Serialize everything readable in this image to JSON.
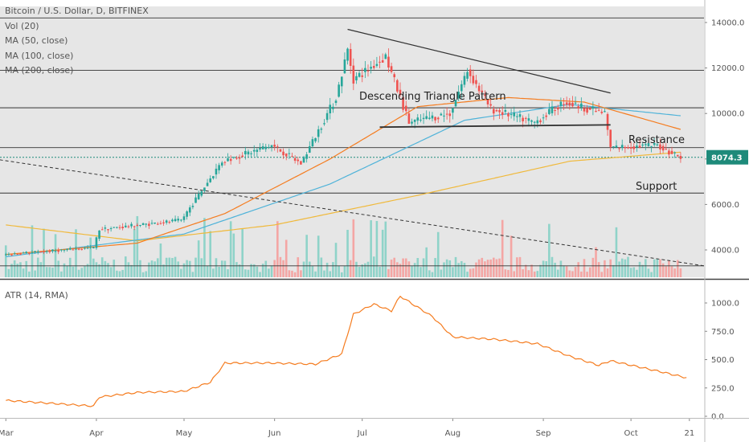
{
  "chart_data": [
    {
      "type": "candlestick",
      "title": "Bitcoin / U.S. Dollar, D, BITFINEX",
      "legend": [
        "Vol (20)",
        "MA (50, close)",
        "MA (100, close)",
        "MA (200, close)"
      ],
      "y_ticks": [
        "14000.0",
        "12000.0",
        "10000.0",
        "8000.0",
        "6000.0",
        "4000.0"
      ],
      "ylim": [
        3000,
        14500
      ],
      "last_price": "8074.3",
      "annotations": {
        "pattern": "Descending Triangle Pattern",
        "resistance": "Resistance",
        "support": "Support"
      },
      "horizontal_levels": [
        14200,
        11900,
        10250,
        8500,
        6500,
        3300
      ],
      "pattern_lines": {
        "upper": [
          [
            "2019-06-26",
            13700
          ],
          [
            "2019-09-24",
            10900
          ]
        ],
        "lower": [
          [
            "2019-07-07",
            9400
          ],
          [
            "2019-09-24",
            9500
          ]
        ],
        "long_trend": [
          [
            "2019-02-25",
            8000
          ],
          [
            "2019-10-26",
            3300
          ]
        ]
      },
      "price_path": [
        [
          "2019-03-01",
          3800
        ],
        [
          "2019-03-31",
          4100
        ],
        [
          "2019-04-02",
          4900
        ],
        [
          "2019-04-30",
          5300
        ],
        [
          "2019-05-14",
          7900
        ],
        [
          "2019-05-31",
          8600
        ],
        [
          "2019-06-10",
          7800
        ],
        [
          "2019-06-22",
          10700
        ],
        [
          "2019-06-26",
          12800
        ],
        [
          "2019-06-28",
          11500
        ],
        [
          "2019-07-09",
          12500
        ],
        [
          "2019-07-17",
          9600
        ],
        [
          "2019-07-31",
          10000
        ],
        [
          "2019-08-06",
          11900
        ],
        [
          "2019-08-14",
          10200
        ],
        [
          "2019-08-29",
          9600
        ],
        [
          "2019-09-08",
          10500
        ],
        [
          "2019-09-22",
          10000
        ],
        [
          "2019-09-24",
          8500
        ],
        [
          "2019-10-10",
          8600
        ],
        [
          "2019-10-18",
          8074
        ]
      ],
      "ma_50": [
        [
          "2019-03-01",
          3800
        ],
        [
          "2019-04-15",
          4300
        ],
        [
          "2019-05-15",
          5600
        ],
        [
          "2019-06-20",
          8000
        ],
        [
          "2019-07-20",
          10300
        ],
        [
          "2019-08-20",
          10700
        ],
        [
          "2019-09-15",
          10500
        ],
        [
          "2019-10-18",
          9300
        ]
      ],
      "ma_100": [
        [
          "2019-03-01",
          3700
        ],
        [
          "2019-05-01",
          4700
        ],
        [
          "2019-06-20",
          6900
        ],
        [
          "2019-08-05",
          9700
        ],
        [
          "2019-09-10",
          10400
        ],
        [
          "2019-10-18",
          9900
        ]
      ],
      "ma_200": [
        [
          "2019-03-01",
          5100
        ],
        [
          "2019-04-15",
          4400
        ],
        [
          "2019-06-01",
          5100
        ],
        [
          "2019-07-20",
          6400
        ],
        [
          "2019-09-10",
          7900
        ],
        [
          "2019-10-18",
          8300
        ]
      ]
    },
    {
      "type": "line",
      "title": "ATR (14, RMA)",
      "y_ticks": [
        "1000.0",
        "750.0",
        "500.0",
        "250.0",
        "0.0"
      ],
      "ylim": [
        -30,
        1150
      ],
      "x_ticks": [
        "Mar",
        "Apr",
        "May",
        "Jun",
        "Jul",
        "Aug",
        "Sep",
        "Oct",
        "21"
      ],
      "x_tick_dates": [
        "2019-03-01",
        "2019-04-01",
        "2019-05-01",
        "2019-06-01",
        "2019-07-01",
        "2019-08-01",
        "2019-09-01",
        "2019-10-01",
        "2019-10-21"
      ],
      "series": [
        {
          "color": "#f57c1f",
          "x": [
            "2019-03-01",
            "2019-03-31",
            "2019-04-02",
            "2019-04-15",
            "2019-05-01",
            "2019-05-10",
            "2019-05-15",
            "2019-05-31",
            "2019-06-15",
            "2019-06-24",
            "2019-06-28",
            "2019-07-05",
            "2019-07-11",
            "2019-07-14",
            "2019-07-25",
            "2019-08-01",
            "2019-08-15",
            "2019-08-30",
            "2019-09-10",
            "2019-09-20",
            "2019-09-24",
            "2019-10-10",
            "2019-10-20"
          ],
          "values": [
            140,
            90,
            170,
            210,
            220,
            300,
            470,
            470,
            460,
            550,
            900,
            990,
            930,
            1060,
            880,
            700,
            680,
            640,
            530,
            450,
            490,
            400,
            340
          ]
        }
      ]
    }
  ],
  "colors": {
    "up": "#26a69a",
    "down": "#ef5350",
    "up_volume": "#8fd3c9",
    "down_volume": "#f4a6a4",
    "ma_50": "#f57c1f",
    "ma_100": "#4fb3d9",
    "ma_200": "#f0b93b",
    "price_label_bg": "#1e8a7a",
    "plot_bg": "#e6e6e6"
  }
}
